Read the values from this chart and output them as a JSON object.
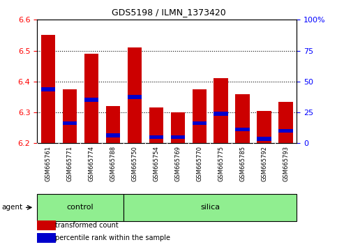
{
  "title": "GDS5198 / ILMN_1373420",
  "samples": [
    "GSM665761",
    "GSM665771",
    "GSM665774",
    "GSM665788",
    "GSM665750",
    "GSM665754",
    "GSM665769",
    "GSM665770",
    "GSM665775",
    "GSM665785",
    "GSM665792",
    "GSM665793"
  ],
  "groups": [
    "control",
    "control",
    "control",
    "control",
    "silica",
    "silica",
    "silica",
    "silica",
    "silica",
    "silica",
    "silica",
    "silica"
  ],
  "red_values": [
    6.55,
    6.375,
    6.49,
    6.32,
    6.51,
    6.315,
    6.3,
    6.375,
    6.41,
    6.36,
    6.305,
    6.335
  ],
  "blue_values": [
    6.375,
    6.265,
    6.34,
    6.225,
    6.35,
    6.22,
    6.22,
    6.265,
    6.295,
    6.245,
    6.215,
    6.24
  ],
  "ymin": 6.2,
  "ymax": 6.6,
  "yticks_left": [
    6.2,
    6.3,
    6.4,
    6.5,
    6.6
  ],
  "yticks_right": [
    0,
    25,
    50,
    75,
    100
  ],
  "ylabel_right_ticks": [
    "0",
    "25",
    "50",
    "75",
    "100%"
  ],
  "bar_color": "#cc0000",
  "blue_color": "#0000cc",
  "green_color": "#90ee90",
  "gray_color": "#d0d0d0",
  "legend_red": "transformed count",
  "legend_blue": "percentile rank within the sample",
  "bar_width": 0.65,
  "control_count": 4,
  "silica_count": 8
}
